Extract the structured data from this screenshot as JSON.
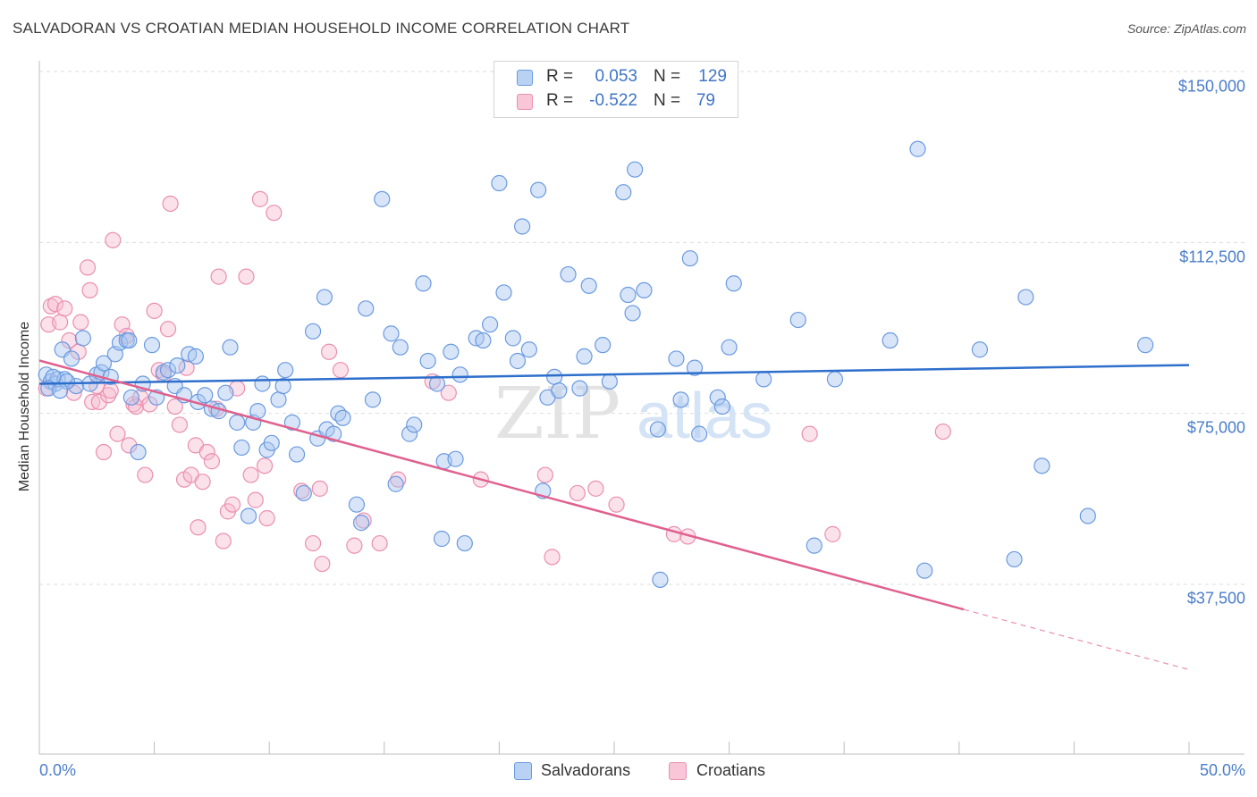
{
  "title": "SALVADORAN VS CROATIAN MEDIAN HOUSEHOLD INCOME CORRELATION CHART",
  "source": "Source: ZipAtlas.com",
  "watermark": {
    "zip": "ZIP",
    "atlas": "atlas"
  },
  "legend": {
    "r_label": "R =",
    "n_label": "N =",
    "rows": [
      {
        "r": "0.053",
        "n": "129"
      },
      {
        "r": "-0.522",
        "n": "79"
      }
    ]
  },
  "colors": {
    "blue": "#6a9ae0",
    "blue_fill": "#a9c6f0",
    "blue_line": "#2e6fcc",
    "pink": "#ea8fb0",
    "pink_fill": "#f6bdd0",
    "pink_line": "#e0608e",
    "grid": "#dddddd",
    "axis_text": "#4a7dc9"
  },
  "chart_data": {
    "type": "scatter",
    "title": "SALVADORAN VS CROATIAN MEDIAN HOUSEHOLD INCOME CORRELATION CHART",
    "xlabel": "",
    "ylabel": "Median Household Income",
    "xlim": [
      0,
      50
    ],
    "ylim": [
      0,
      155000
    ],
    "x_tick_labels": {
      "left": "0.0%",
      "right": "50.0%"
    },
    "y_ticks": [
      {
        "value": 150000,
        "label": "$150,000"
      },
      {
        "value": 112500,
        "label": "$112,500"
      },
      {
        "value": 75000,
        "label": "$75,000"
      },
      {
        "value": 37500,
        "label": "$37,500"
      }
    ],
    "series": [
      {
        "name": "Salvadorans",
        "r": 0.053,
        "n": 129,
        "trend": {
          "x": [
            0,
            50
          ],
          "y": [
            81500,
            85600
          ]
        },
        "points": [
          [
            0.3,
            83500
          ],
          [
            0.5,
            82000
          ],
          [
            0.7,
            81500
          ],
          [
            0.8,
            82500
          ],
          [
            1.0,
            89000
          ],
          [
            1.1,
            82500
          ],
          [
            1.4,
            87000
          ],
          [
            1.6,
            81000
          ],
          [
            1.9,
            91500
          ],
          [
            2.2,
            81500
          ],
          [
            2.5,
            83500
          ],
          [
            2.7,
            84000
          ],
          [
            2.8,
            86000
          ],
          [
            3.1,
            83000
          ],
          [
            3.3,
            88000
          ],
          [
            3.5,
            90500
          ],
          [
            3.8,
            91000
          ],
          [
            3.9,
            91000
          ],
          [
            4.0,
            78500
          ],
          [
            4.3,
            66500
          ],
          [
            4.5,
            81500
          ],
          [
            4.9,
            90000
          ],
          [
            5.1,
            78500
          ],
          [
            5.4,
            84000
          ],
          [
            5.6,
            84500
          ],
          [
            5.9,
            81000
          ],
          [
            6.0,
            85500
          ],
          [
            6.3,
            79000
          ],
          [
            6.5,
            88000
          ],
          [
            6.8,
            87500
          ],
          [
            6.9,
            77500
          ],
          [
            7.2,
            79000
          ],
          [
            7.5,
            76000
          ],
          [
            7.8,
            75500
          ],
          [
            8.1,
            79500
          ],
          [
            8.3,
            89500
          ],
          [
            8.6,
            73000
          ],
          [
            8.8,
            67500
          ],
          [
            9.1,
            52500
          ],
          [
            9.3,
            73000
          ],
          [
            9.5,
            75500
          ],
          [
            9.7,
            81500
          ],
          [
            9.9,
            67000
          ],
          [
            10.1,
            68500
          ],
          [
            10.4,
            78000
          ],
          [
            10.6,
            81000
          ],
          [
            10.7,
            84500
          ],
          [
            11.0,
            73000
          ],
          [
            11.2,
            66000
          ],
          [
            11.5,
            57500
          ],
          [
            11.9,
            93000
          ],
          [
            12.1,
            69500
          ],
          [
            12.5,
            71500
          ],
          [
            12.8,
            70500
          ],
          [
            13.0,
            75000
          ],
          [
            13.2,
            74000
          ],
          [
            12.4,
            100500
          ],
          [
            13.8,
            55000
          ],
          [
            14.0,
            51000
          ],
          [
            14.2,
            98000
          ],
          [
            14.5,
            78000
          ],
          [
            14.9,
            122000
          ],
          [
            15.3,
            92500
          ],
          [
            15.5,
            59500
          ],
          [
            15.7,
            89500
          ],
          [
            16.1,
            70500
          ],
          [
            16.3,
            72500
          ],
          [
            16.7,
            103500
          ],
          [
            16.9,
            86500
          ],
          [
            17.3,
            81500
          ],
          [
            17.5,
            47500
          ],
          [
            17.6,
            64500
          ],
          [
            17.9,
            88500
          ],
          [
            18.1,
            65000
          ],
          [
            18.3,
            83500
          ],
          [
            18.5,
            46500
          ],
          [
            19.0,
            91500
          ],
          [
            19.3,
            91000
          ],
          [
            19.6,
            94500
          ],
          [
            20.0,
            125500
          ],
          [
            20.2,
            101500
          ],
          [
            20.6,
            91500
          ],
          [
            20.8,
            86500
          ],
          [
            21.0,
            116000
          ],
          [
            21.3,
            89000
          ],
          [
            21.7,
            124000
          ],
          [
            21.9,
            58000
          ],
          [
            22.1,
            78500
          ],
          [
            22.4,
            83000
          ],
          [
            22.6,
            80000
          ],
          [
            23.0,
            105500
          ],
          [
            23.5,
            80500
          ],
          [
            23.7,
            87500
          ],
          [
            23.9,
            103000
          ],
          [
            24.5,
            90000
          ],
          [
            24.8,
            82000
          ],
          [
            25.4,
            123500
          ],
          [
            25.9,
            128500
          ],
          [
            25.6,
            101000
          ],
          [
            25.8,
            97000
          ],
          [
            26.3,
            102000
          ],
          [
            26.9,
            71500
          ],
          [
            27.0,
            38500
          ],
          [
            27.7,
            87000
          ],
          [
            27.9,
            78000
          ],
          [
            28.3,
            109000
          ],
          [
            28.5,
            85000
          ],
          [
            28.7,
            70500
          ],
          [
            29.5,
            78500
          ],
          [
            29.7,
            76500
          ],
          [
            30.0,
            89500
          ],
          [
            30.2,
            103500
          ],
          [
            31.5,
            82500
          ],
          [
            33.0,
            95500
          ],
          [
            33.7,
            46000
          ],
          [
            34.6,
            82500
          ],
          [
            37.0,
            91000
          ],
          [
            38.2,
            133000
          ],
          [
            38.5,
            40500
          ],
          [
            40.9,
            89000
          ],
          [
            42.4,
            43000
          ],
          [
            42.9,
            100500
          ],
          [
            43.6,
            63500
          ],
          [
            45.6,
            52500
          ],
          [
            48.1,
            90000
          ],
          [
            1.2,
            82000
          ],
          [
            0.6,
            83000
          ],
          [
            0.4,
            80500
          ],
          [
            0.9,
            80000
          ]
        ]
      },
      {
        "name": "Croatians",
        "r": -0.522,
        "n": 79,
        "trend": {
          "x": [
            0,
            40.2
          ],
          "y": [
            86600,
            32000
          ]
        },
        "trend_dashed": {
          "x": [
            40.2,
            50
          ],
          "y": [
            32000,
            18800
          ]
        },
        "points": [
          [
            0.3,
            80500
          ],
          [
            0.4,
            94500
          ],
          [
            0.5,
            98500
          ],
          [
            0.7,
            99000
          ],
          [
            0.9,
            95000
          ],
          [
            1.1,
            98000
          ],
          [
            1.3,
            91000
          ],
          [
            1.5,
            79500
          ],
          [
            1.7,
            88500
          ],
          [
            1.8,
            95000
          ],
          [
            2.1,
            107000
          ],
          [
            2.2,
            102000
          ],
          [
            2.3,
            77500
          ],
          [
            2.5,
            81000
          ],
          [
            2.6,
            77500
          ],
          [
            2.8,
            66500
          ],
          [
            3.0,
            79000
          ],
          [
            3.1,
            80000
          ],
          [
            3.2,
            113000
          ],
          [
            3.4,
            70500
          ],
          [
            3.6,
            94500
          ],
          [
            3.8,
            92000
          ],
          [
            3.9,
            68000
          ],
          [
            4.1,
            77000
          ],
          [
            4.2,
            76500
          ],
          [
            4.4,
            78500
          ],
          [
            4.6,
            61500
          ],
          [
            4.8,
            77000
          ],
          [
            5.0,
            97500
          ],
          [
            5.2,
            84500
          ],
          [
            5.4,
            83500
          ],
          [
            5.6,
            93500
          ],
          [
            5.7,
            121000
          ],
          [
            5.9,
            76500
          ],
          [
            6.1,
            72500
          ],
          [
            6.3,
            60500
          ],
          [
            6.4,
            85000
          ],
          [
            6.6,
            61500
          ],
          [
            6.8,
            68000
          ],
          [
            6.9,
            50000
          ],
          [
            7.1,
            60000
          ],
          [
            7.3,
            66500
          ],
          [
            7.5,
            64500
          ],
          [
            7.7,
            76000
          ],
          [
            7.8,
            105000
          ],
          [
            8.0,
            47000
          ],
          [
            8.2,
            53500
          ],
          [
            8.4,
            55000
          ],
          [
            8.6,
            80500
          ],
          [
            9.0,
            105000
          ],
          [
            9.2,
            61500
          ],
          [
            9.4,
            56000
          ],
          [
            9.6,
            122000
          ],
          [
            9.8,
            63500
          ],
          [
            9.9,
            52000
          ],
          [
            10.2,
            119000
          ],
          [
            11.4,
            58000
          ],
          [
            11.9,
            46500
          ],
          [
            12.2,
            58500
          ],
          [
            12.3,
            42000
          ],
          [
            12.6,
            88500
          ],
          [
            13.1,
            84500
          ],
          [
            13.7,
            46000
          ],
          [
            14.1,
            51500
          ],
          [
            14.8,
            46500
          ],
          [
            15.6,
            60500
          ],
          [
            17.1,
            82000
          ],
          [
            17.8,
            79500
          ],
          [
            19.2,
            60500
          ],
          [
            22.0,
            61500
          ],
          [
            22.3,
            43500
          ],
          [
            23.4,
            57500
          ],
          [
            24.2,
            58500
          ],
          [
            25.1,
            55000
          ],
          [
            27.6,
            48500
          ],
          [
            28.2,
            48000
          ],
          [
            34.5,
            48500
          ],
          [
            33.5,
            70500
          ],
          [
            39.3,
            71000
          ]
        ]
      }
    ]
  },
  "bottom_legend": [
    "Salvadorans",
    "Croatians"
  ]
}
